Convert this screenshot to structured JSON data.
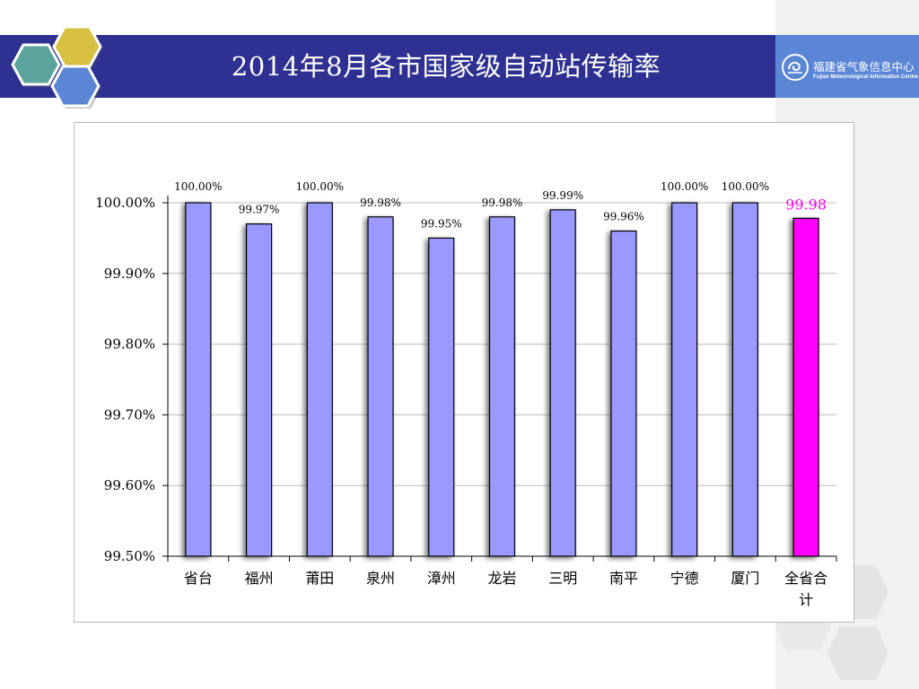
{
  "slide": {
    "title": "2014年8月各市国家级自动站传输率"
  },
  "logo": {
    "name_cn": "福建省气象信息中心",
    "name_en": "Fujian Meteorological Information Centre",
    "icon": "meteorological-emblem-icon"
  },
  "colors": {
    "title_bar": "#2e3192",
    "logo_bar": "#5b86d6",
    "bar_fill": "#9999ff",
    "total_bar_fill": "#ff00ff",
    "total_label": "#ff00ff"
  },
  "chart_data": {
    "type": "bar",
    "title": "",
    "xlabel": "",
    "ylabel": "",
    "ylim": [
      99.5,
      100.0
    ],
    "ytick_values": [
      99.5,
      99.6,
      99.7,
      99.8,
      99.9,
      100.0
    ],
    "ytick_labels": [
      "99.50%",
      "99.60%",
      "99.70%",
      "99.80%",
      "99.90%",
      "100.00%"
    ],
    "grid": true,
    "legend": "none",
    "categories": [
      "省台",
      "福州",
      "莆田",
      "泉州",
      "漳州",
      "龙岩",
      "三明",
      "南平",
      "宁德",
      "厦门",
      "全省合计"
    ],
    "values": [
      100.0,
      99.97,
      100.0,
      99.98,
      99.95,
      99.98,
      99.99,
      99.96,
      100.0,
      100.0,
      99.978
    ],
    "data_labels": [
      "100.00%",
      "99.97%",
      "100.00%",
      "99.98%",
      "99.95%",
      "99.98%",
      "99.99%",
      "99.96%",
      "100.00%",
      "100.00%",
      "99.98"
    ],
    "highlight_index": 10
  }
}
